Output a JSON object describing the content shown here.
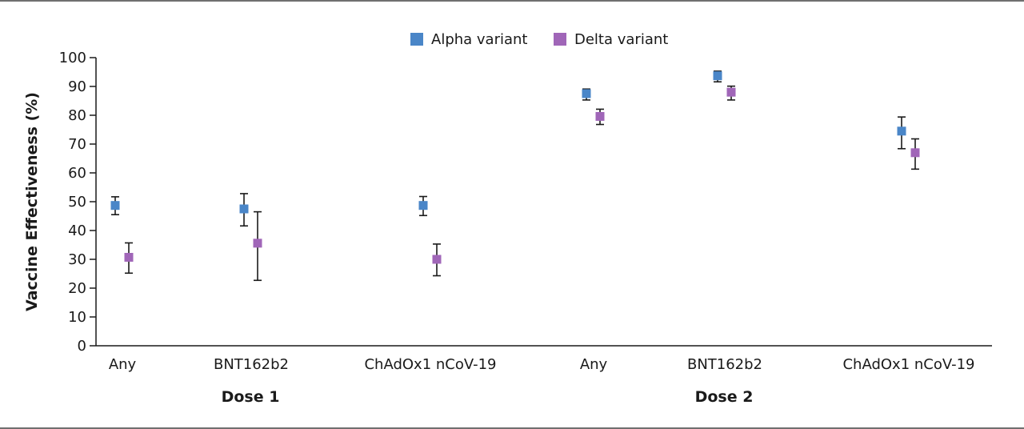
{
  "chart_data": {
    "type": "scatter",
    "ylabel": "Vaccine Effectiveness (%)",
    "ylim": [
      0,
      100
    ],
    "yticks": [
      "0",
      "10",
      "20",
      "30",
      "40",
      "50",
      "60",
      "70",
      "80",
      "90",
      "100"
    ],
    "categories": [
      "Any",
      "BNT162b2",
      "ChAdOx1 nCoV-19",
      "Any",
      "BNT162b2",
      "ChAdOx1 nCoV-19"
    ],
    "groups": [
      {
        "label": "Dose 1",
        "categories": [
          0,
          1,
          2
        ]
      },
      {
        "label": "Dose 2",
        "categories": [
          3,
          4,
          5
        ]
      }
    ],
    "legend_position": "top-center",
    "grid": false,
    "series": [
      {
        "name": "Alpha variant",
        "color": "#4a86c8",
        "values": [
          48.7,
          47.5,
          48.7,
          87.5,
          93.7,
          74.5
        ],
        "ci_low": [
          45.5,
          41.6,
          45.2,
          85.3,
          91.6,
          68.4
        ],
        "ci_high": [
          51.7,
          52.8,
          51.8,
          89.1,
          95.3,
          79.4
        ]
      },
      {
        "name": "Delta variant",
        "color": "#a066b8",
        "values": [
          30.7,
          35.6,
          30.0,
          79.6,
          88.0,
          67.0
        ],
        "ci_low": [
          25.2,
          22.7,
          24.3,
          76.8,
          85.3,
          61.3
        ],
        "ci_high": [
          35.7,
          46.5,
          35.3,
          82.1,
          90.1,
          71.8
        ]
      }
    ]
  }
}
